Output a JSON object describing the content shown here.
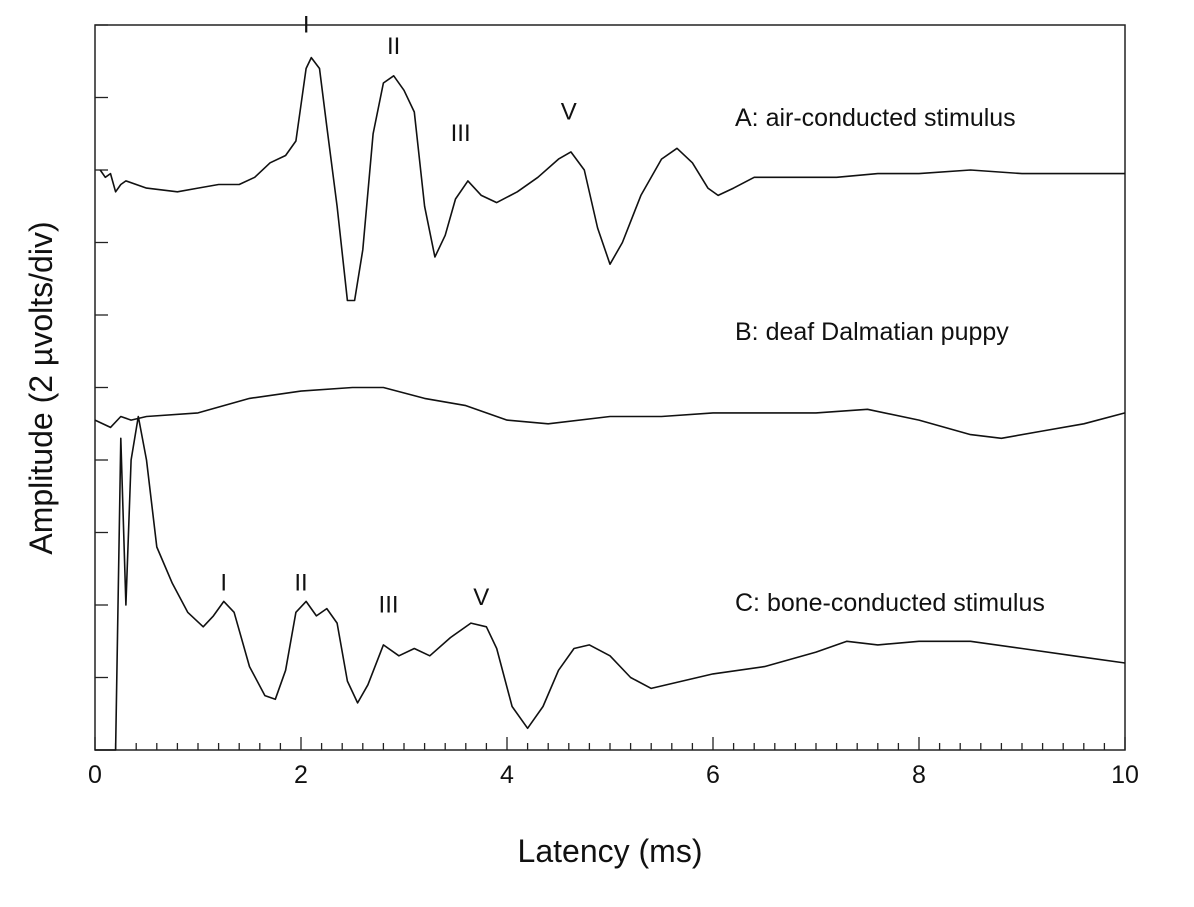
{
  "chart_data": {
    "type": "line",
    "title": "",
    "xlabel": "Latency (ms)",
    "ylabel": "Amplitude (2 µvolts/div)",
    "xlim": [
      0,
      10
    ],
    "ylim": [
      0,
      10
    ],
    "x_ticks": [
      "0",
      "2",
      "4",
      "6",
      "8",
      "10"
    ],
    "y_tick_count": 10,
    "grid": false,
    "series": [
      {
        "name": "A: air-conducted stimulus",
        "points": [
          [
            0.05,
            8.0
          ],
          [
            0.1,
            7.9
          ],
          [
            0.15,
            7.95
          ],
          [
            0.2,
            7.7
          ],
          [
            0.25,
            7.8
          ],
          [
            0.3,
            7.85
          ],
          [
            0.5,
            7.75
          ],
          [
            0.8,
            7.7
          ],
          [
            1.0,
            7.75
          ],
          [
            1.2,
            7.8
          ],
          [
            1.4,
            7.8
          ],
          [
            1.55,
            7.9
          ],
          [
            1.7,
            8.1
          ],
          [
            1.85,
            8.2
          ],
          [
            1.95,
            8.4
          ],
          [
            2.0,
            8.9
          ],
          [
            2.05,
            9.4
          ],
          [
            2.1,
            9.55
          ],
          [
            2.18,
            9.4
          ],
          [
            2.25,
            8.6
          ],
          [
            2.35,
            7.5
          ],
          [
            2.45,
            6.2
          ],
          [
            2.52,
            6.2
          ],
          [
            2.6,
            6.9
          ],
          [
            2.7,
            8.5
          ],
          [
            2.8,
            9.2
          ],
          [
            2.9,
            9.3
          ],
          [
            3.0,
            9.1
          ],
          [
            3.1,
            8.8
          ],
          [
            3.2,
            7.5
          ],
          [
            3.3,
            6.8
          ],
          [
            3.4,
            7.1
          ],
          [
            3.5,
            7.6
          ],
          [
            3.62,
            7.85
          ],
          [
            3.75,
            7.65
          ],
          [
            3.9,
            7.55
          ],
          [
            4.1,
            7.7
          ],
          [
            4.3,
            7.9
          ],
          [
            4.5,
            8.15
          ],
          [
            4.62,
            8.25
          ],
          [
            4.75,
            8.0
          ],
          [
            4.88,
            7.2
          ],
          [
            5.0,
            6.7
          ],
          [
            5.12,
            7.0
          ],
          [
            5.3,
            7.65
          ],
          [
            5.5,
            8.15
          ],
          [
            5.65,
            8.3
          ],
          [
            5.8,
            8.1
          ],
          [
            5.95,
            7.75
          ],
          [
            6.05,
            7.65
          ],
          [
            6.2,
            7.75
          ],
          [
            6.4,
            7.9
          ],
          [
            6.8,
            7.9
          ],
          [
            7.2,
            7.9
          ],
          [
            7.6,
            7.95
          ],
          [
            8.0,
            7.95
          ],
          [
            8.5,
            8.0
          ],
          [
            9.0,
            7.95
          ],
          [
            9.5,
            7.95
          ],
          [
            10.0,
            7.95
          ]
        ]
      },
      {
        "name": "B: deaf Dalmatian puppy",
        "points": [
          [
            0.0,
            4.55
          ],
          [
            0.15,
            4.45
          ],
          [
            0.25,
            4.6
          ],
          [
            0.35,
            4.55
          ],
          [
            0.5,
            4.6
          ],
          [
            1.0,
            4.65
          ],
          [
            1.5,
            4.85
          ],
          [
            2.0,
            4.95
          ],
          [
            2.5,
            5.0
          ],
          [
            2.8,
            5.0
          ],
          [
            3.2,
            4.85
          ],
          [
            3.6,
            4.75
          ],
          [
            4.0,
            4.55
          ],
          [
            4.4,
            4.5
          ],
          [
            5.0,
            4.6
          ],
          [
            5.5,
            4.6
          ],
          [
            6.0,
            4.65
          ],
          [
            6.5,
            4.65
          ],
          [
            7.0,
            4.65
          ],
          [
            7.5,
            4.7
          ],
          [
            8.0,
            4.55
          ],
          [
            8.5,
            4.35
          ],
          [
            8.8,
            4.3
          ],
          [
            9.2,
            4.4
          ],
          [
            9.6,
            4.5
          ],
          [
            10.0,
            4.65
          ]
        ]
      },
      {
        "name": "C: bone-conducted stimulus",
        "points": [
          [
            0.0,
            0.0
          ],
          [
            0.2,
            0.0
          ],
          [
            0.25,
            4.3
          ],
          [
            0.3,
            2.0
          ],
          [
            0.35,
            4.0
          ],
          [
            0.42,
            4.6
          ],
          [
            0.5,
            4.0
          ],
          [
            0.6,
            2.8
          ],
          [
            0.75,
            2.3
          ],
          [
            0.9,
            1.9
          ],
          [
            1.05,
            1.7
          ],
          [
            1.15,
            1.85
          ],
          [
            1.25,
            2.05
          ],
          [
            1.35,
            1.9
          ],
          [
            1.5,
            1.15
          ],
          [
            1.65,
            0.75
          ],
          [
            1.75,
            0.7
          ],
          [
            1.85,
            1.1
          ],
          [
            1.95,
            1.9
          ],
          [
            2.05,
            2.05
          ],
          [
            2.15,
            1.85
          ],
          [
            2.25,
            1.95
          ],
          [
            2.35,
            1.75
          ],
          [
            2.45,
            0.95
          ],
          [
            2.55,
            0.65
          ],
          [
            2.65,
            0.9
          ],
          [
            2.8,
            1.45
          ],
          [
            2.95,
            1.3
          ],
          [
            3.1,
            1.4
          ],
          [
            3.25,
            1.3
          ],
          [
            3.45,
            1.55
          ],
          [
            3.65,
            1.75
          ],
          [
            3.8,
            1.7
          ],
          [
            3.9,
            1.4
          ],
          [
            4.05,
            0.6
          ],
          [
            4.2,
            0.3
          ],
          [
            4.35,
            0.6
          ],
          [
            4.5,
            1.1
          ],
          [
            4.65,
            1.4
          ],
          [
            4.8,
            1.45
          ],
          [
            5.0,
            1.3
          ],
          [
            5.2,
            1.0
          ],
          [
            5.4,
            0.85
          ],
          [
            5.7,
            0.95
          ],
          [
            6.0,
            1.05
          ],
          [
            6.5,
            1.15
          ],
          [
            7.0,
            1.35
          ],
          [
            7.3,
            1.5
          ],
          [
            7.6,
            1.45
          ],
          [
            8.0,
            1.5
          ],
          [
            8.5,
            1.5
          ],
          [
            9.0,
            1.4
          ],
          [
            9.5,
            1.3
          ],
          [
            10.0,
            1.2
          ]
        ]
      }
    ],
    "peak_labels": [
      {
        "text": "I",
        "x": 2.05,
        "y": 9.9
      },
      {
        "text": "II",
        "x": 2.9,
        "y": 9.6
      },
      {
        "text": "III",
        "x": 3.55,
        "y": 8.4
      },
      {
        "text": "V",
        "x": 4.6,
        "y": 8.7
      },
      {
        "text": "I",
        "x": 1.25,
        "y": 2.2
      },
      {
        "text": "II",
        "x": 2.0,
        "y": 2.2
      },
      {
        "text": "III",
        "x": 2.85,
        "y": 1.9
      },
      {
        "text": "V",
        "x": 3.75,
        "y": 2.0
      }
    ]
  }
}
